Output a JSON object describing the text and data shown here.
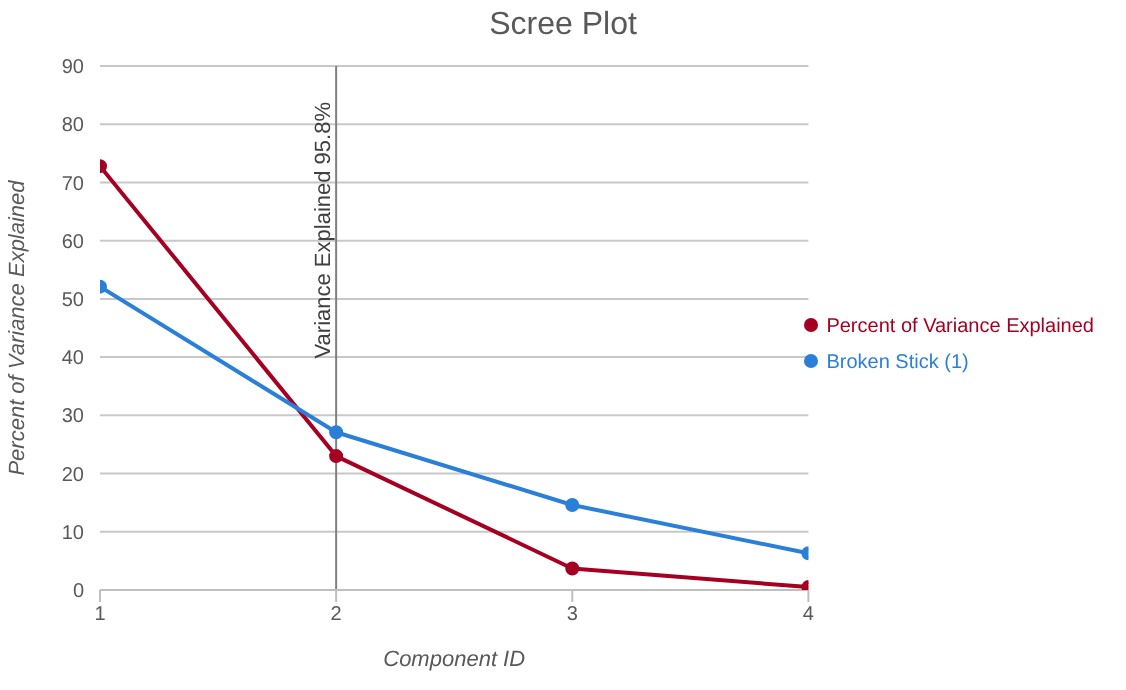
{
  "chart_data": {
    "type": "line",
    "title": "Scree Plot",
    "xlabel": "Component ID",
    "ylabel": "Percent of Variance Explained",
    "x": [
      1,
      2,
      3,
      4
    ],
    "series": [
      {
        "name": "Percent of Variance Explained",
        "color": "#a50021",
        "values": [
          72.8,
          23.0,
          3.7,
          0.5
        ]
      },
      {
        "name": "Broken Stick (1)",
        "color": "#2a7fd8",
        "values": [
          52.1,
          27.1,
          14.6,
          6.3
        ]
      }
    ],
    "xlim": [
      1,
      4
    ],
    "xticks": [
      1,
      2,
      3,
      4
    ],
    "ylim": [
      0,
      90
    ],
    "yticks": [
      0,
      10,
      20,
      30,
      40,
      50,
      60,
      70,
      80,
      90
    ],
    "ref_lines": [
      {
        "axis": "x",
        "value": 2,
        "label": "Variance Explained 95.8%",
        "color": "#808080"
      }
    ],
    "grid": "y",
    "legend": "right",
    "marker": "circle",
    "line_style": "solid"
  }
}
